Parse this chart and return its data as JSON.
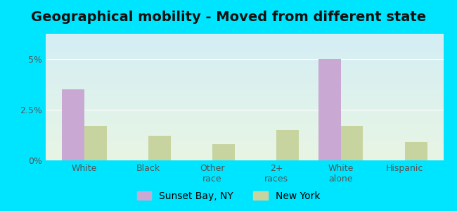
{
  "title": "Geographical mobility - Moved from different state",
  "categories": [
    "White",
    "Black",
    "Other\nrace",
    "2+\nraces",
    "White\nalone",
    "Hispanic"
  ],
  "sunset_bay": [
    3.5,
    0.0,
    0.0,
    0.0,
    5.0,
    0.0
  ],
  "new_york": [
    1.7,
    1.2,
    0.8,
    1.5,
    1.7,
    0.9
  ],
  "sunset_bay_color": "#c9a8d4",
  "new_york_color": "#c8d4a0",
  "background_outer": "#00e5ff",
  "bg_bottom_color": "#e8f5e4",
  "bg_top_color": "#d4eef5",
  "ylim": [
    0,
    6.25
  ],
  "yticks": [
    0,
    2.5,
    5.0
  ],
  "ytick_labels": [
    "0%",
    "2.5%",
    "5%"
  ],
  "legend_labels": [
    "Sunset Bay, NY",
    "New York"
  ],
  "bar_width": 0.35,
  "title_fontsize": 14,
  "tick_fontsize": 9,
  "legend_fontsize": 10
}
